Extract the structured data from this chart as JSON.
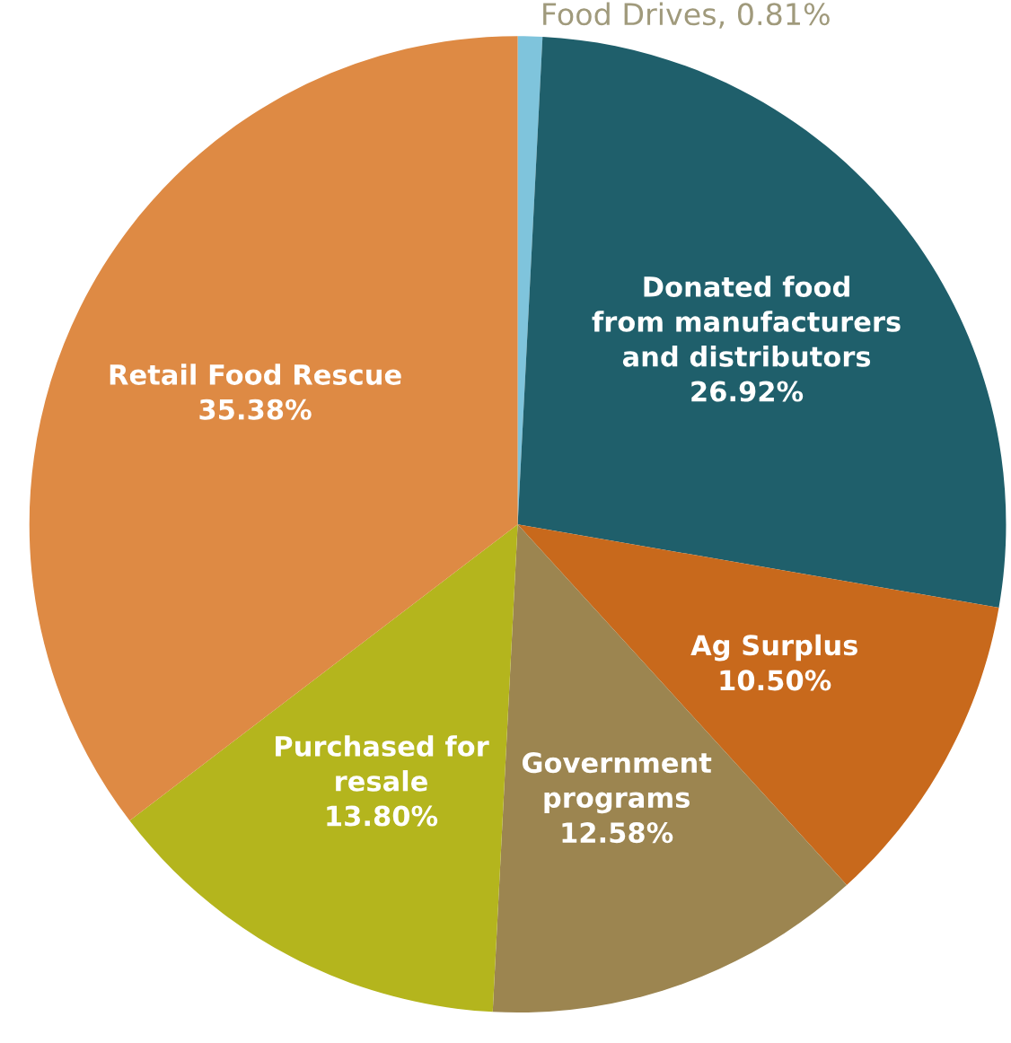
{
  "chart_data": {
    "type": "pie",
    "categories": [
      "Food Drives",
      "Donated food\nfrom manufacturers\nand distributors",
      "Ag Surplus",
      "Government\nprograms",
      "Purchased for\nresale",
      "Retail Food Rescue"
    ],
    "values": [
      0.81,
      26.92,
      10.5,
      12.58,
      13.8,
      35.38
    ],
    "value_labels": [
      "0.81%",
      "26.92%",
      "10.50%",
      "12.58%",
      "13.80%",
      "35.38%"
    ],
    "colors": [
      "#7fc4dc",
      "#1f5f6b",
      "#c8691c",
      "#9c8550",
      "#b4b51d",
      "#de8a44"
    ]
  }
}
